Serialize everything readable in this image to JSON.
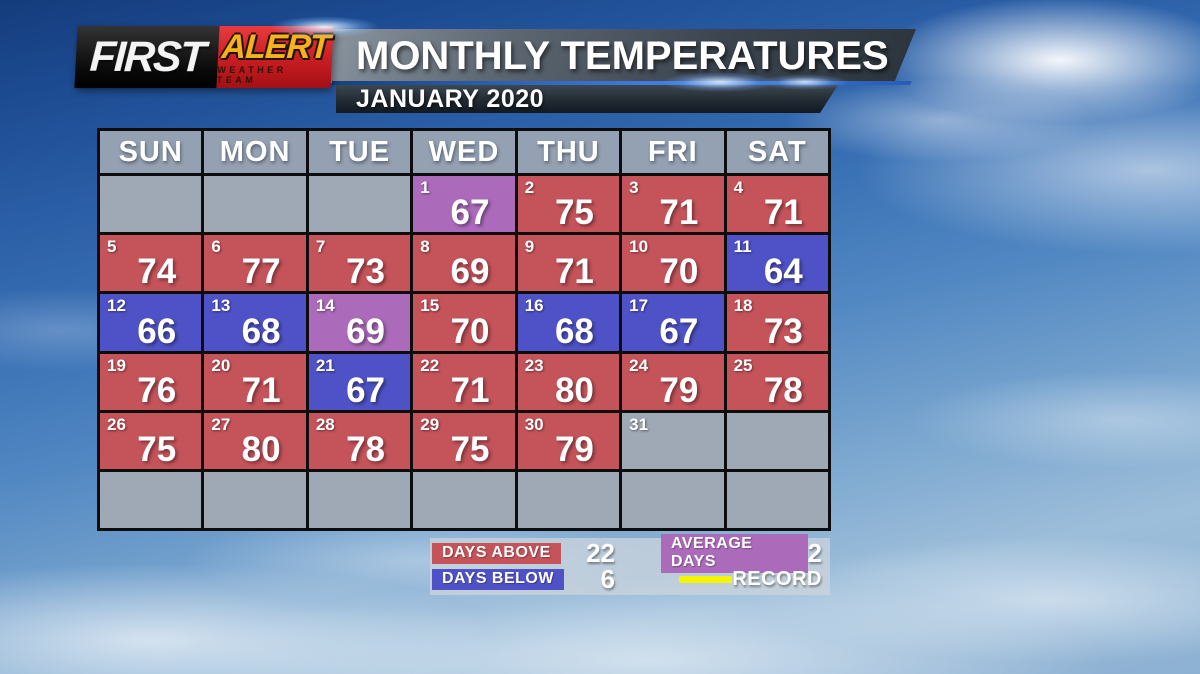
{
  "header": {
    "logo": {
      "first": "FIRST",
      "alert": "ALERT",
      "weather_team": "WEATHER TEAM"
    },
    "title": "MONTHLY TEMPERATURES",
    "subtitle": "JANUARY 2020"
  },
  "calendar": {
    "day_headers": [
      "SUN",
      "MON",
      "TUE",
      "WED",
      "THU",
      "FRI",
      "SAT"
    ],
    "cells": [
      {
        "day": "",
        "temp": "",
        "type": "blank"
      },
      {
        "day": "",
        "temp": "",
        "type": "blank"
      },
      {
        "day": "",
        "temp": "",
        "type": "blank"
      },
      {
        "day": "1",
        "temp": "67",
        "type": "average"
      },
      {
        "day": "2",
        "temp": "75",
        "type": "above"
      },
      {
        "day": "3",
        "temp": "71",
        "type": "above"
      },
      {
        "day": "4",
        "temp": "71",
        "type": "above"
      },
      {
        "day": "5",
        "temp": "74",
        "type": "above"
      },
      {
        "day": "6",
        "temp": "77",
        "type": "above"
      },
      {
        "day": "7",
        "temp": "73",
        "type": "above"
      },
      {
        "day": "8",
        "temp": "69",
        "type": "above"
      },
      {
        "day": "9",
        "temp": "71",
        "type": "above"
      },
      {
        "day": "10",
        "temp": "70",
        "type": "above"
      },
      {
        "day": "11",
        "temp": "64",
        "type": "below"
      },
      {
        "day": "12",
        "temp": "66",
        "type": "below"
      },
      {
        "day": "13",
        "temp": "68",
        "type": "below"
      },
      {
        "day": "14",
        "temp": "69",
        "type": "average"
      },
      {
        "day": "15",
        "temp": "70",
        "type": "above"
      },
      {
        "day": "16",
        "temp": "68",
        "type": "below"
      },
      {
        "day": "17",
        "temp": "67",
        "type": "below"
      },
      {
        "day": "18",
        "temp": "73",
        "type": "above"
      },
      {
        "day": "19",
        "temp": "76",
        "type": "above"
      },
      {
        "day": "20",
        "temp": "71",
        "type": "above"
      },
      {
        "day": "21",
        "temp": "67",
        "type": "below"
      },
      {
        "day": "22",
        "temp": "71",
        "type": "above"
      },
      {
        "day": "23",
        "temp": "80",
        "type": "above"
      },
      {
        "day": "24",
        "temp": "79",
        "type": "above"
      },
      {
        "day": "25",
        "temp": "78",
        "type": "above"
      },
      {
        "day": "26",
        "temp": "75",
        "type": "above"
      },
      {
        "day": "27",
        "temp": "80",
        "type": "above"
      },
      {
        "day": "28",
        "temp": "78",
        "type": "above"
      },
      {
        "day": "29",
        "temp": "75",
        "type": "above"
      },
      {
        "day": "30",
        "temp": "79",
        "type": "above"
      },
      {
        "day": "31",
        "temp": "",
        "type": "nodata"
      },
      {
        "day": "",
        "temp": "",
        "type": "blank"
      },
      {
        "day": "",
        "temp": "",
        "type": "blank"
      },
      {
        "day": "",
        "temp": "",
        "type": "blank"
      },
      {
        "day": "",
        "temp": "",
        "type": "blank"
      },
      {
        "day": "",
        "temp": "",
        "type": "blank"
      },
      {
        "day": "",
        "temp": "",
        "type": "blank"
      },
      {
        "day": "",
        "temp": "",
        "type": "blank"
      },
      {
        "day": "",
        "temp": "",
        "type": "blank"
      }
    ]
  },
  "legend": {
    "days_above_label": "DAYS ABOVE",
    "days_above_value": "22",
    "days_below_label": "DAYS BELOW",
    "days_below_value": "6",
    "average_days_label": "AVERAGE DAYS",
    "average_days_value": "2",
    "record_label": "RECORD"
  },
  "colors": {
    "above": "#c4535a",
    "below": "#4f52c6",
    "average": "#ab6aba",
    "record_line": "#f4f407"
  },
  "chart_data": {
    "type": "heatmap",
    "title": "MONTHLY TEMPERATURES",
    "subtitle": "JANUARY 2020",
    "unit": "degrees F",
    "category_colors": {
      "above": "#c4535a",
      "below": "#4f52c6",
      "average": "#ab6aba"
    },
    "days": [
      {
        "day": 1,
        "temp": 67,
        "category": "average"
      },
      {
        "day": 2,
        "temp": 75,
        "category": "above"
      },
      {
        "day": 3,
        "temp": 71,
        "category": "above"
      },
      {
        "day": 4,
        "temp": 71,
        "category": "above"
      },
      {
        "day": 5,
        "temp": 74,
        "category": "above"
      },
      {
        "day": 6,
        "temp": 77,
        "category": "above"
      },
      {
        "day": 7,
        "temp": 73,
        "category": "above"
      },
      {
        "day": 8,
        "temp": 69,
        "category": "above"
      },
      {
        "day": 9,
        "temp": 71,
        "category": "above"
      },
      {
        "day": 10,
        "temp": 70,
        "category": "above"
      },
      {
        "day": 11,
        "temp": 64,
        "category": "below"
      },
      {
        "day": 12,
        "temp": 66,
        "category": "below"
      },
      {
        "day": 13,
        "temp": 68,
        "category": "below"
      },
      {
        "day": 14,
        "temp": 69,
        "category": "average"
      },
      {
        "day": 15,
        "temp": 70,
        "category": "above"
      },
      {
        "day": 16,
        "temp": 68,
        "category": "below"
      },
      {
        "day": 17,
        "temp": 67,
        "category": "below"
      },
      {
        "day": 18,
        "temp": 73,
        "category": "above"
      },
      {
        "day": 19,
        "temp": 76,
        "category": "above"
      },
      {
        "day": 20,
        "temp": 71,
        "category": "above"
      },
      {
        "day": 21,
        "temp": 67,
        "category": "below"
      },
      {
        "day": 22,
        "temp": 71,
        "category": "above"
      },
      {
        "day": 23,
        "temp": 80,
        "category": "above"
      },
      {
        "day": 24,
        "temp": 79,
        "category": "above"
      },
      {
        "day": 25,
        "temp": 78,
        "category": "above"
      },
      {
        "day": 26,
        "temp": 75,
        "category": "above"
      },
      {
        "day": 27,
        "temp": 80,
        "category": "above"
      },
      {
        "day": 28,
        "temp": 78,
        "category": "above"
      },
      {
        "day": 29,
        "temp": 75,
        "category": "above"
      },
      {
        "day": 30,
        "temp": 79,
        "category": "above"
      },
      {
        "day": 31,
        "temp": null,
        "category": "no-data"
      }
    ],
    "summary": {
      "days_above": 22,
      "days_below": 6,
      "average_days": 2
    }
  }
}
